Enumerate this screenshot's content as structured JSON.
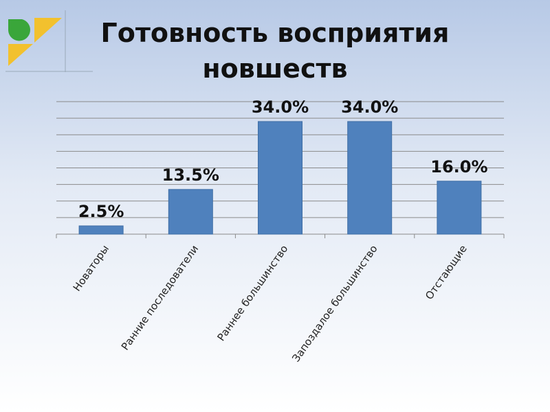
{
  "chart_data": {
    "type": "bar",
    "title": "Готовность восприятия новшеств",
    "categories": [
      "Новаторы",
      "Ранние последователи",
      "Раннее большинство",
      "Запоздалое большинство",
      "Отстающие"
    ],
    "values": [
      2.5,
      13.5,
      34.0,
      34.0,
      16.0
    ],
    "value_labels": [
      "2.5%",
      "13.5%",
      "34.0%",
      "34.0%",
      "16.0%"
    ],
    "color": "#4f81bd",
    "ylim": [
      0,
      40
    ],
    "yticks": [
      0,
      5,
      10,
      15,
      20,
      25,
      30,
      35,
      40
    ],
    "grid": true
  }
}
